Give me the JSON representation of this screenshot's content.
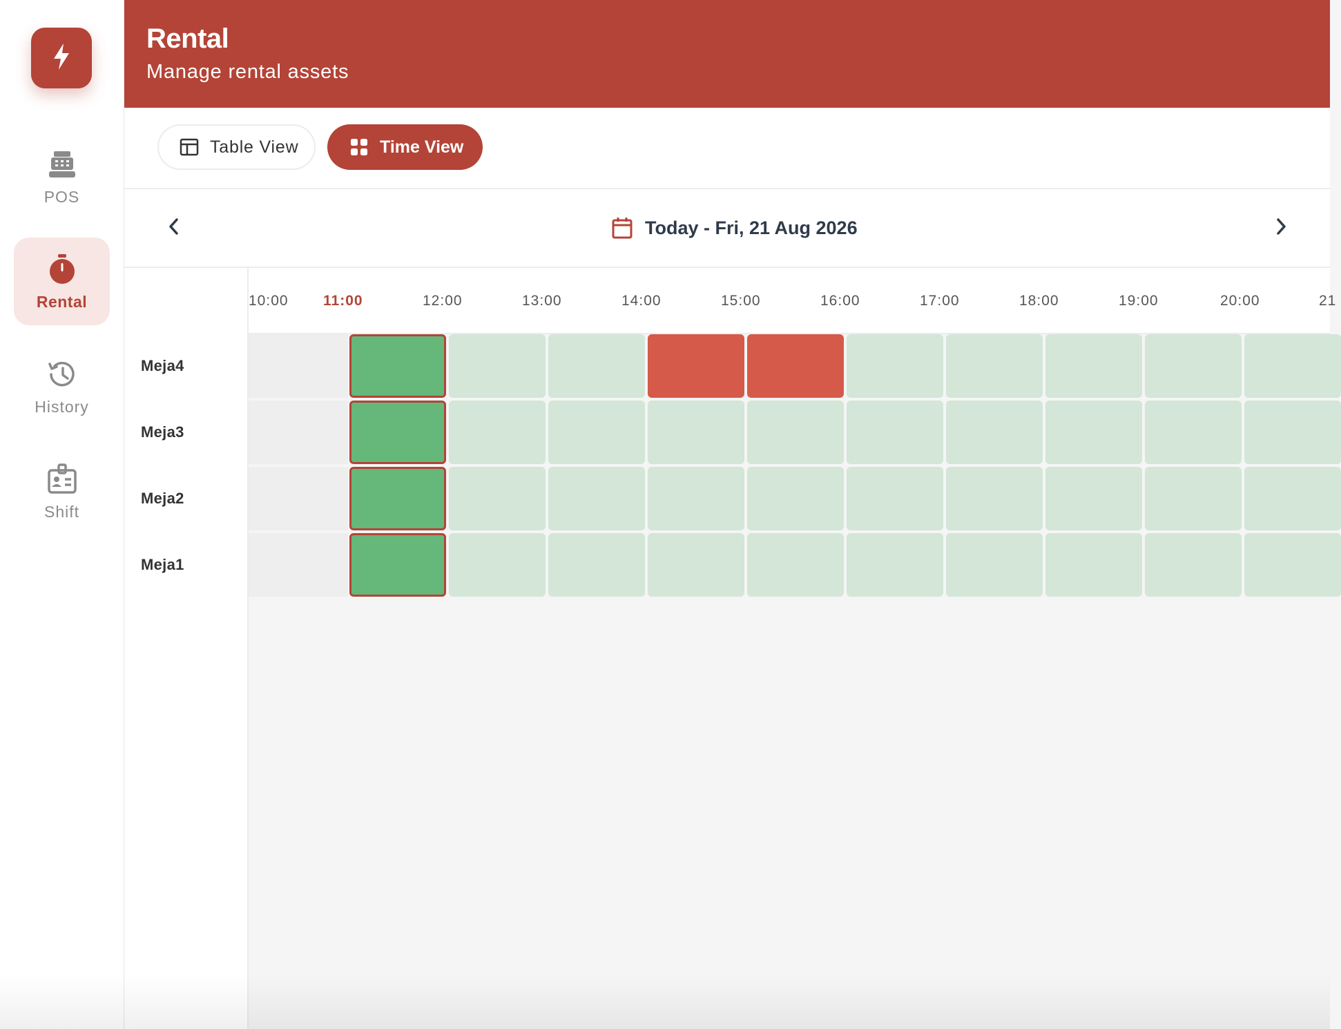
{
  "brand": {
    "logo_icon": "lightning-bolt-icon",
    "color": "#b34437"
  },
  "sidebar": {
    "items": [
      {
        "label": "POS",
        "icon": "cash-register-icon",
        "active": false
      },
      {
        "label": "Rental",
        "icon": "stopwatch-icon",
        "active": true
      },
      {
        "label": "History",
        "icon": "history-icon",
        "active": false
      },
      {
        "label": "Shift",
        "icon": "id-badge-icon",
        "active": false
      }
    ]
  },
  "header": {
    "title": "Rental",
    "subtitle": "Manage rental assets"
  },
  "toolbar": {
    "table_view_label": "Table View",
    "time_view_label": "Time View",
    "active_view": "Time View"
  },
  "date_nav": {
    "label": "Today - Fri, 21 Aug 2026"
  },
  "timeline": {
    "hours": [
      "10:00",
      "11:00",
      "12:00",
      "13:00",
      "14:00",
      "15:00",
      "16:00",
      "17:00",
      "18:00",
      "19:00",
      "20:00",
      "21"
    ],
    "current_hour": "11:00",
    "rows": [
      {
        "name": "Meja4",
        "slots": [
          "past",
          "now",
          "free",
          "free",
          "booked",
          "booked",
          "free",
          "free",
          "free",
          "free",
          "free"
        ]
      },
      {
        "name": "Meja3",
        "slots": [
          "past",
          "now",
          "free",
          "free",
          "free",
          "free",
          "free",
          "free",
          "free",
          "free",
          "free"
        ]
      },
      {
        "name": "Meja2",
        "slots": [
          "past",
          "now",
          "free",
          "free",
          "free",
          "free",
          "free",
          "free",
          "free",
          "free",
          "free"
        ]
      },
      {
        "name": "Meja1",
        "slots": [
          "past",
          "now",
          "free",
          "free",
          "free",
          "free",
          "free",
          "free",
          "free",
          "free",
          "free"
        ]
      }
    ],
    "status_colors": {
      "past": "#eeeeef",
      "free": "#d3e6d7",
      "now": "#66b77a",
      "booked": "#d65a4a"
    }
  }
}
